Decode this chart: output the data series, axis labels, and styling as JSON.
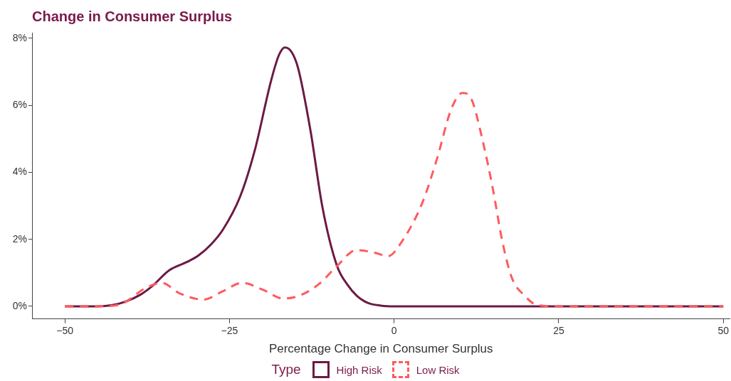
{
  "chart_data": {
    "type": "line",
    "title": "Change in Consumer Surplus",
    "xlabel": "Percentage Change in Consumer Surplus",
    "legend_title": "Type",
    "legend": "bottom",
    "grid": false,
    "marker": "none",
    "xlim": [
      -55,
      51
    ],
    "xticks": [
      {
        "value": -50,
        "label": "−50"
      },
      {
        "value": -25,
        "label": "−25"
      },
      0,
      25,
      50
    ],
    "ylim": [
      -0.38,
      8.16
    ],
    "yticks": [
      {
        "value": 0,
        "label": "0%"
      },
      {
        "value": 2,
        "label": "2%"
      },
      {
        "value": 4,
        "label": "4%"
      },
      {
        "value": 6,
        "label": "6%"
      },
      {
        "value": 8,
        "label": "8%"
      }
    ],
    "series": [
      {
        "name": "High Risk",
        "color": "#6b1a45",
        "line_style": "solid",
        "x": [
          -50,
          -45,
          -43,
          -40.8,
          -38.5,
          -36.7,
          -34.2,
          -31.5,
          -29.7,
          -27.8,
          -26,
          -23.4,
          -21.2,
          -18.7,
          -17.5,
          -16.6,
          -15.6,
          -14.6,
          -12.7,
          -10.9,
          -8.7,
          -7,
          -5.7,
          -4,
          -2,
          0,
          10,
          25,
          50
        ],
        "values": [
          0,
          0,
          0.03,
          0.14,
          0.35,
          0.61,
          1.07,
          1.32,
          1.52,
          1.85,
          2.29,
          3.27,
          4.63,
          6.73,
          7.5,
          7.73,
          7.6,
          7.12,
          5.24,
          2.97,
          1.22,
          0.62,
          0.32,
          0.1,
          0.02,
          0,
          0,
          0,
          0
        ]
      },
      {
        "name": "Low Risk",
        "color": "#ff5a5f",
        "line_style": "dashed",
        "x": [
          -50,
          -45,
          -41.7,
          -37.8,
          -35.3,
          -32.6,
          -29,
          -26,
          -23.1,
          -20,
          -16.8,
          -14,
          -11.2,
          -8.7,
          -5.7,
          -3,
          -0.9,
          1.3,
          4.3,
          6.5,
          8.7,
          10.4,
          11.7,
          13.5,
          15,
          16.4,
          17.9,
          19.8,
          21.6,
          25,
          50
        ],
        "values": [
          0,
          0,
          0.05,
          0.54,
          0.7,
          0.39,
          0.2,
          0.45,
          0.7,
          0.5,
          0.23,
          0.35,
          0.7,
          1.2,
          1.68,
          1.6,
          1.5,
          1.97,
          3.1,
          4.4,
          5.9,
          6.37,
          6.2,
          4.9,
          3.5,
          1.97,
          0.84,
          0.32,
          0.05,
          0,
          0
        ]
      }
    ]
  }
}
